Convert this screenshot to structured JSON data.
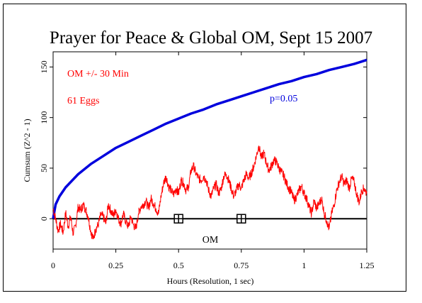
{
  "chart_data": {
    "type": "line",
    "title": "Prayer for Peace & Global OM, Sept 15 2007",
    "xlabel": "Hours (Resolution, 1 sec)",
    "ylabel": "Cumsum (Z^2 - 1)",
    "xlim": [
      0,
      1.25
    ],
    "ylim": [
      -30,
      165
    ],
    "x_ticks": [
      {
        "value": 0,
        "label": "0"
      },
      {
        "value": 0.25,
        "label": "0.25"
      },
      {
        "value": 0.5,
        "label": "0.5"
      },
      {
        "value": 0.75,
        "label": "0.75"
      },
      {
        "value": 1,
        "label": "1"
      },
      {
        "value": 1.25,
        "label": "1.25"
      }
    ],
    "y_ticks": [
      {
        "value": 0,
        "label": "0"
      },
      {
        "value": 50,
        "label": "50"
      },
      {
        "value": 100,
        "label": "100"
      },
      {
        "value": 150,
        "label": "150"
      }
    ],
    "annotations": {
      "event_label": "OM +/- 30 Min",
      "eggs_label": "61 Eggs",
      "om_label": "OM",
      "p_label": "p=0.05"
    },
    "event_markers": [
      0.5,
      0.75
    ],
    "colors": {
      "cumsum": "#ff0000",
      "significance": "#0000dd",
      "baseline": "#000000",
      "annotation_red": "#ff0000",
      "annotation_blue": "#0000dd"
    },
    "series": [
      {
        "role": "significance-envelope",
        "formula": "p=0.05 envelope ~ 1.645*sqrt(2*n), n = seconds",
        "x": [
          0,
          0.01,
          0.025,
          0.05,
          0.1,
          0.15,
          0.2,
          0.25,
          0.3,
          0.35,
          0.4,
          0.45,
          0.5,
          0.55,
          0.6,
          0.65,
          0.7,
          0.75,
          0.8,
          0.85,
          0.9,
          0.95,
          1.0,
          1.05,
          1.1,
          1.15,
          1.2,
          1.25
        ],
        "y": [
          0,
          14,
          22,
          31,
          44,
          54,
          62,
          70,
          76,
          82,
          88,
          94,
          99,
          104,
          108,
          113,
          117,
          121,
          125,
          129,
          133,
          136,
          140,
          143,
          147,
          150,
          153,
          157
        ]
      },
      {
        "role": "cumsum",
        "x": [
          0,
          0.01,
          0.02,
          0.03,
          0.04,
          0.05,
          0.06,
          0.07,
          0.08,
          0.09,
          0.1,
          0.11,
          0.12,
          0.13,
          0.14,
          0.15,
          0.16,
          0.17,
          0.18,
          0.19,
          0.2,
          0.21,
          0.22,
          0.23,
          0.24,
          0.25,
          0.26,
          0.27,
          0.28,
          0.29,
          0.3,
          0.31,
          0.32,
          0.33,
          0.34,
          0.35,
          0.36,
          0.37,
          0.38,
          0.39,
          0.4,
          0.41,
          0.42,
          0.43,
          0.44,
          0.45,
          0.46,
          0.47,
          0.48,
          0.49,
          0.5,
          0.51,
          0.52,
          0.53,
          0.54,
          0.55,
          0.56,
          0.57,
          0.58,
          0.59,
          0.6,
          0.61,
          0.62,
          0.63,
          0.64,
          0.65,
          0.66,
          0.67,
          0.68,
          0.69,
          0.7,
          0.71,
          0.72,
          0.73,
          0.74,
          0.75,
          0.76,
          0.77,
          0.78,
          0.79,
          0.8,
          0.81,
          0.82,
          0.83,
          0.84,
          0.85,
          0.86,
          0.87,
          0.88,
          0.89,
          0.9,
          0.91,
          0.92,
          0.93,
          0.94,
          0.95,
          0.96,
          0.97,
          0.98,
          0.99,
          1.0,
          1.01,
          1.02,
          1.03,
          1.04,
          1.05,
          1.06,
          1.07,
          1.08,
          1.09,
          1.1,
          1.11,
          1.12,
          1.13,
          1.14,
          1.15,
          1.16,
          1.17,
          1.18,
          1.19,
          1.2,
          1.21,
          1.22,
          1.23,
          1.24,
          1.25
        ],
        "y": [
          10,
          0,
          -12,
          -5,
          -14,
          6,
          -8,
          2,
          -15,
          -6,
          12,
          8,
          14,
          9,
          2,
          -12,
          -20,
          -10,
          -6,
          4,
          2,
          -5,
          14,
          8,
          3,
          9,
          0,
          -5,
          5,
          -3,
          -8,
          2,
          -6,
          -10,
          5,
          12,
          14,
          18,
          10,
          20,
          15,
          10,
          5,
          22,
          35,
          42,
          32,
          28,
          24,
          30,
          25,
          38,
          35,
          28,
          32,
          48,
          52,
          44,
          40,
          38,
          42,
          38,
          28,
          22,
          30,
          34,
          25,
          30,
          42,
          44,
          38,
          30,
          22,
          28,
          34,
          30,
          38,
          44,
          40,
          45,
          52,
          62,
          72,
          60,
          65,
          55,
          48,
          52,
          58,
          56,
          50,
          46,
          42,
          35,
          30,
          26,
          18,
          22,
          28,
          32,
          25,
          20,
          12,
          5,
          18,
          10,
          15,
          20,
          6,
          -2,
          -10,
          5,
          14,
          28,
          36,
          42,
          34,
          38,
          30,
          40,
          36,
          24,
          16,
          28,
          30,
          25
        ]
      }
    ]
  }
}
